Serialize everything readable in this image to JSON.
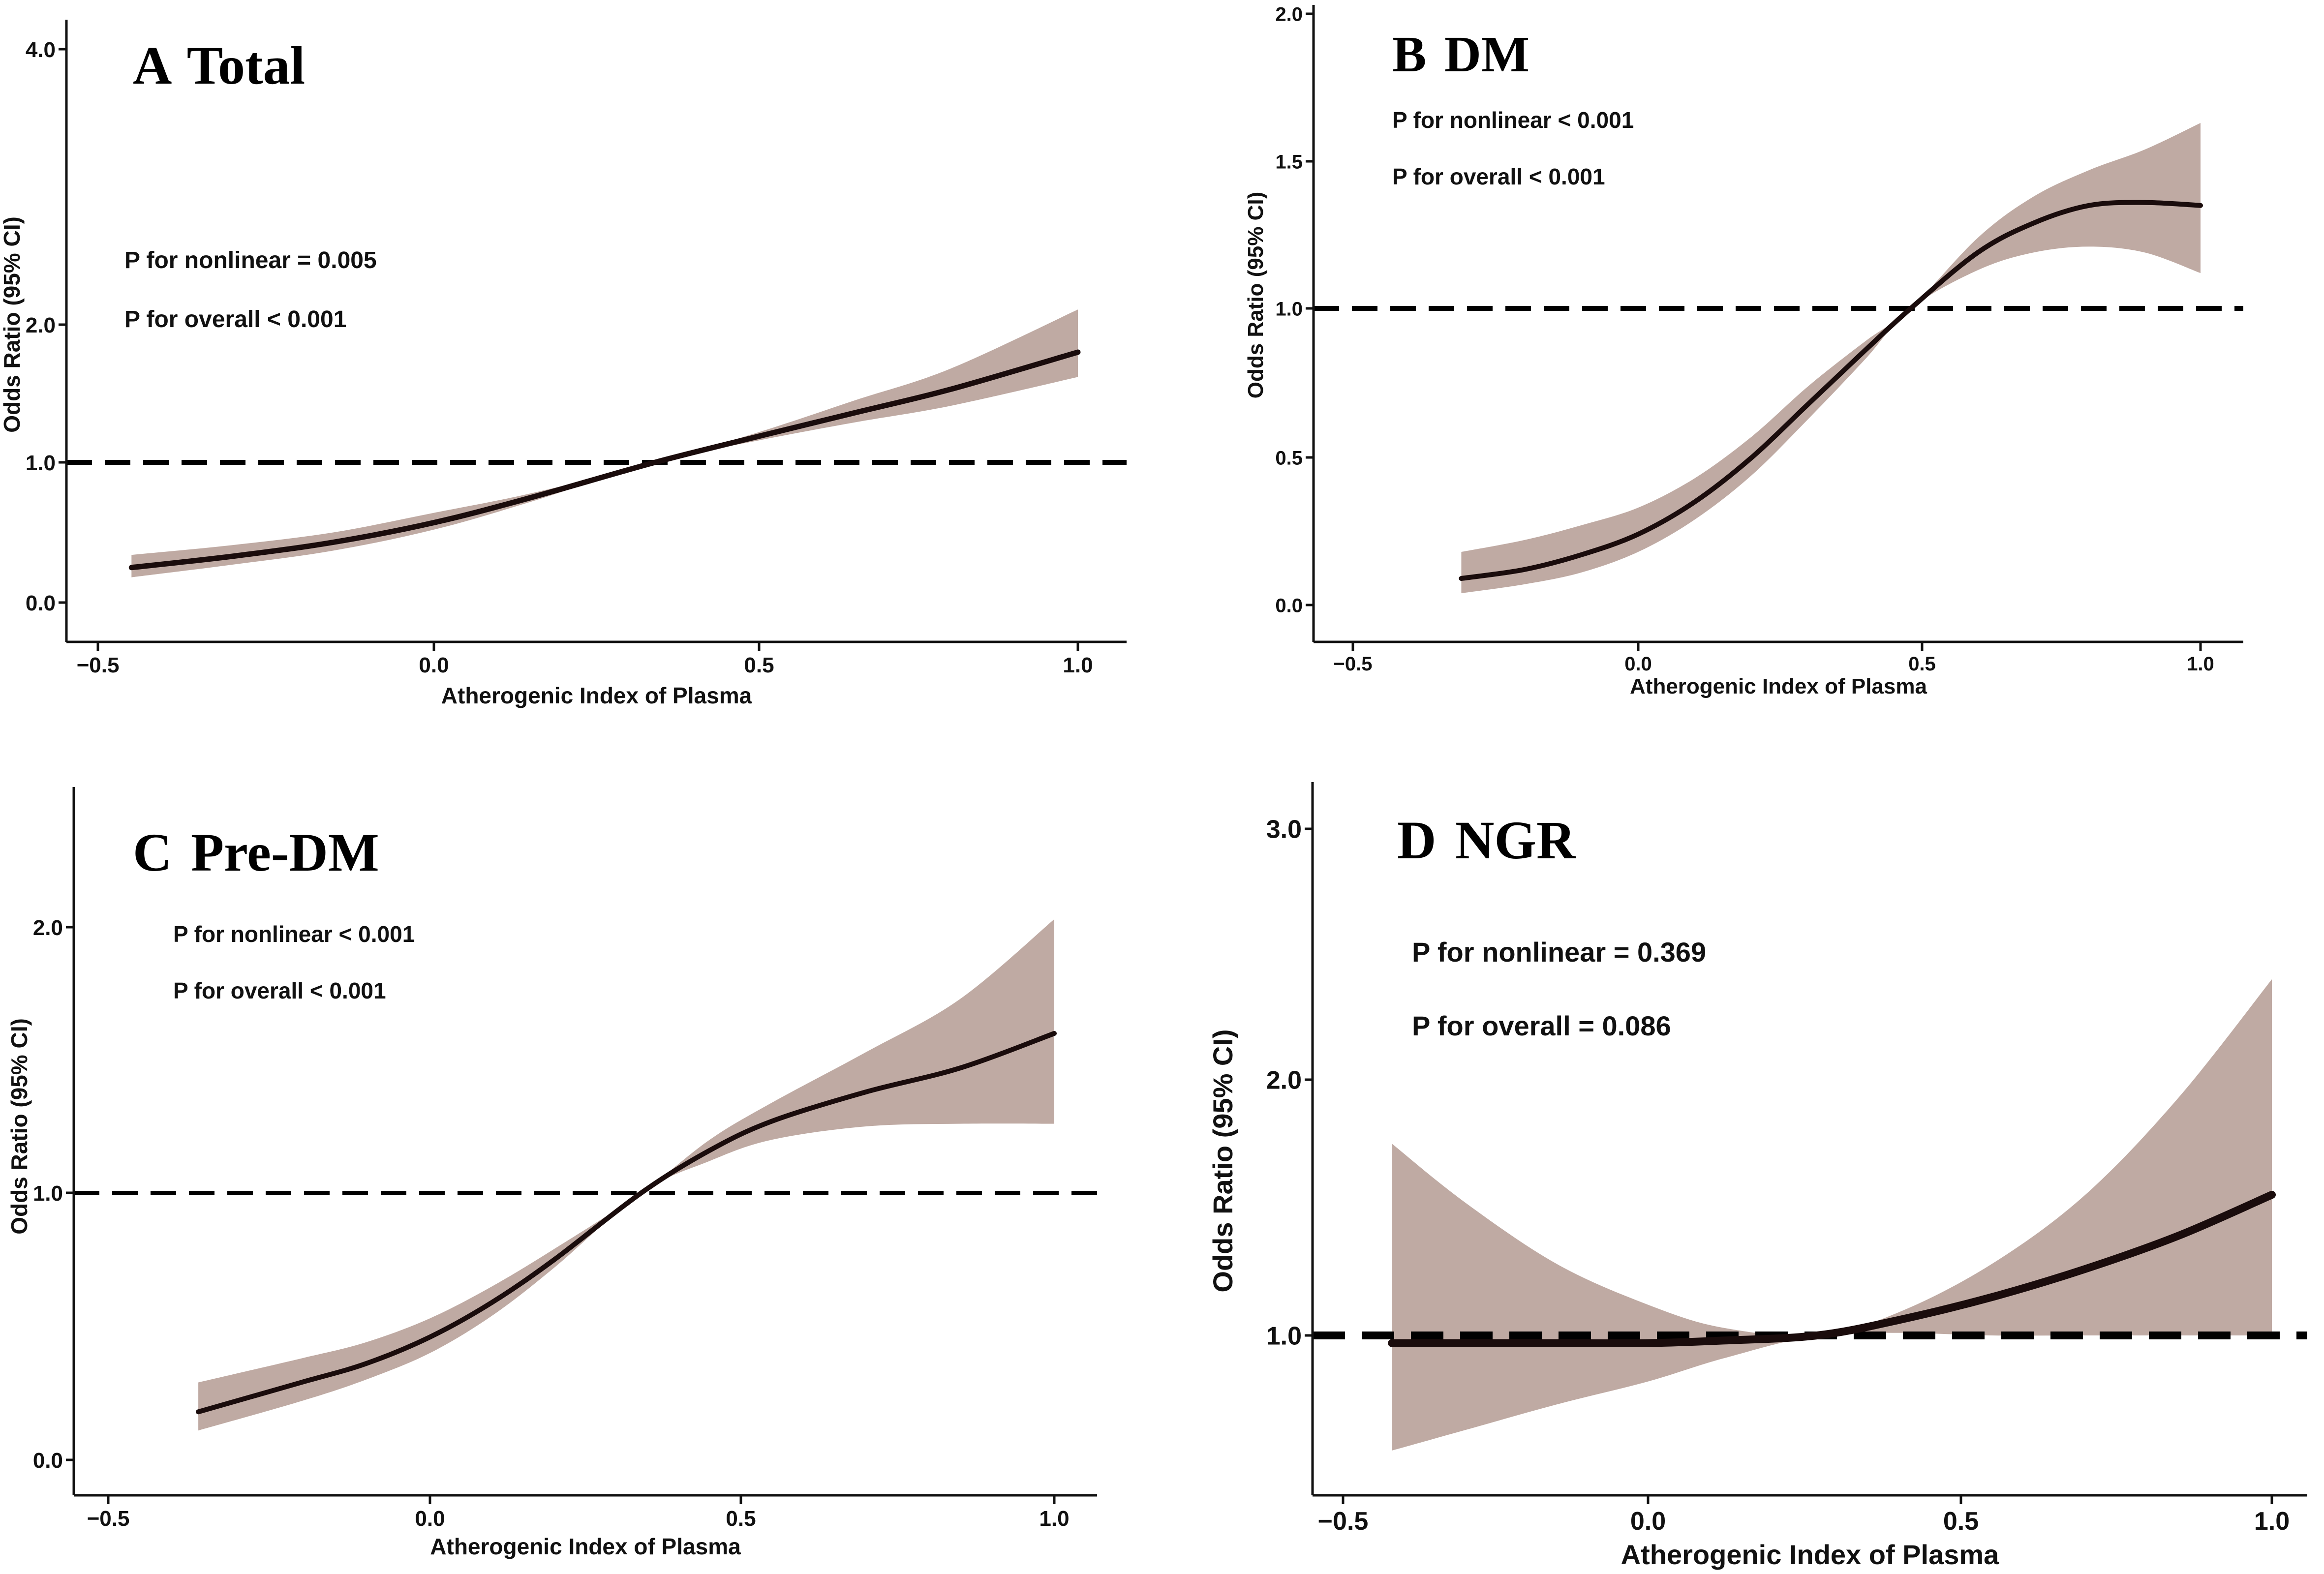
{
  "colors": {
    "band": "#bfaaa3",
    "curve": "#1a0c0c",
    "reference": "#000000",
    "axis": "#111111"
  },
  "chart_data": [
    {
      "id": "A",
      "type": "line",
      "panel_letter": "A",
      "panel_title": "Total",
      "xlabel": "Atherogenic Index of Plasma",
      "ylabel": "Odds Ratio (95% CI)",
      "xticks": [
        -0.5,
        0.0,
        0.5,
        1.0
      ],
      "xtick_labels": [
        "−0.5",
        "0.0",
        "0.5",
        "1.0"
      ],
      "yticks": [
        0.0,
        1.0,
        2.0,
        4.0
      ],
      "ytick_labels": [
        "0.0",
        "1.0",
        "2.0",
        "4.0"
      ],
      "xlim": [
        -0.55,
        1.07
      ],
      "reference_line": 1.0,
      "annotations": [
        "P for nonlinear = 0.005",
        "P for overall < 0.001"
      ],
      "x": [
        -0.45,
        -0.3,
        -0.15,
        0.0,
        0.15,
        0.34,
        0.5,
        0.65,
        0.8,
        1.0
      ],
      "y": [
        0.25,
        0.33,
        0.43,
        0.57,
        0.75,
        1.0,
        1.19,
        1.36,
        1.53,
        1.8
      ],
      "lower": [
        0.18,
        0.27,
        0.37,
        0.52,
        0.72,
        1.0,
        1.16,
        1.29,
        1.41,
        1.62
      ],
      "upper": [
        0.34,
        0.41,
        0.5,
        0.64,
        0.78,
        1.0,
        1.22,
        1.45,
        1.68,
        2.11
      ]
    },
    {
      "id": "B",
      "type": "line",
      "panel_letter": "B",
      "panel_title": "DM",
      "xlabel": "Atherogenic Index of Plasma",
      "ylabel": "Odds Ratio (95% CI)",
      "xticks": [
        -0.5,
        0.0,
        0.5,
        1.0
      ],
      "xtick_labels": [
        "−0.5",
        "0.0",
        "0.5",
        "1.0"
      ],
      "yticks": [
        0.0,
        0.5,
        1.0,
        1.5,
        2.0
      ],
      "ytick_labels": [
        "0.0",
        "0.5",
        "1.0",
        "1.5",
        "2.0"
      ],
      "xlim": [
        -0.58,
        1.08
      ],
      "reference_line": 1.0,
      "annotations": [
        "P for nonlinear < 0.001",
        "P for overall < 0.001"
      ],
      "x": [
        -0.31,
        -0.2,
        -0.1,
        0.0,
        0.1,
        0.2,
        0.3,
        0.4,
        0.48,
        0.6,
        0.7,
        0.8,
        0.9,
        1.0
      ],
      "y": [
        0.09,
        0.12,
        0.17,
        0.24,
        0.35,
        0.5,
        0.68,
        0.86,
        1.0,
        1.19,
        1.29,
        1.35,
        1.36,
        1.35
      ],
      "lower": [
        0.04,
        0.07,
        0.11,
        0.18,
        0.29,
        0.44,
        0.63,
        0.83,
        1.0,
        1.13,
        1.19,
        1.21,
        1.19,
        1.12
      ],
      "upper": [
        0.18,
        0.22,
        0.27,
        0.33,
        0.43,
        0.57,
        0.74,
        0.89,
        1.0,
        1.24,
        1.38,
        1.47,
        1.54,
        1.63
      ]
    },
    {
      "id": "C",
      "type": "line",
      "panel_letter": "C",
      "panel_title": "Pre-DM",
      "xlabel": "Atherogenic Index of Plasma",
      "ylabel": "Odds Ratio (95% CI)",
      "xticks": [
        -0.5,
        0.0,
        0.5,
        1.0
      ],
      "xtick_labels": [
        "−0.5",
        "0.0",
        "0.5",
        "1.0"
      ],
      "yticks": [
        0.0,
        1.0,
        2.0
      ],
      "ytick_labels": [
        "0.0",
        "1.0",
        "2.0"
      ],
      "xlim": [
        -0.56,
        1.07
      ],
      "reference_line": 1.0,
      "annotations": [
        "P for nonlinear < 0.001",
        "P for overall < 0.001"
      ],
      "x": [
        -0.36,
        -0.2,
        -0.1,
        0.0,
        0.1,
        0.2,
        0.34,
        0.45,
        0.55,
        0.7,
        0.85,
        1.0
      ],
      "y": [
        0.18,
        0.29,
        0.36,
        0.46,
        0.59,
        0.75,
        1.0,
        1.16,
        1.27,
        1.38,
        1.47,
        1.6
      ],
      "lower": [
        0.11,
        0.22,
        0.3,
        0.4,
        0.54,
        0.72,
        1.0,
        1.12,
        1.2,
        1.25,
        1.26,
        1.26
      ],
      "upper": [
        0.29,
        0.38,
        0.44,
        0.53,
        0.65,
        0.79,
        1.0,
        1.2,
        1.34,
        1.53,
        1.73,
        2.03
      ]
    },
    {
      "id": "D",
      "type": "line",
      "panel_letter": "D",
      "panel_title": "NGR",
      "xlabel": "Atherogenic Index of Plasma",
      "ylabel": "Odds Ratio (95% CI)",
      "xticks": [
        -0.5,
        0.0,
        0.5,
        1.0
      ],
      "xtick_labels": [
        "−0.5",
        "0.0",
        "0.5",
        "1.0"
      ],
      "yticks": [
        1.0,
        2.0,
        3.0
      ],
      "ytick_labels": [
        "1.0",
        "2.0",
        "3.0"
      ],
      "xlim": [
        -0.57,
        1.07
      ],
      "reference_line": 1.0,
      "annotations": [
        "P for nonlinear = 0.369",
        "P for overall = 0.086"
      ],
      "x": [
        -0.42,
        -0.3,
        -0.15,
        0.0,
        0.12,
        0.27,
        0.4,
        0.55,
        0.7,
        0.85,
        1.0
      ],
      "y": [
        0.97,
        0.97,
        0.97,
        0.97,
        0.98,
        1.0,
        1.06,
        1.15,
        1.26,
        1.39,
        1.55
      ],
      "lower": [
        0.55,
        0.63,
        0.73,
        0.82,
        0.91,
        1.0,
        1.01,
        1.0,
        1.0,
        1.0,
        1.0
      ],
      "upper": [
        1.75,
        1.52,
        1.28,
        1.12,
        1.03,
        1.0,
        1.09,
        1.28,
        1.55,
        1.93,
        2.4
      ]
    }
  ]
}
